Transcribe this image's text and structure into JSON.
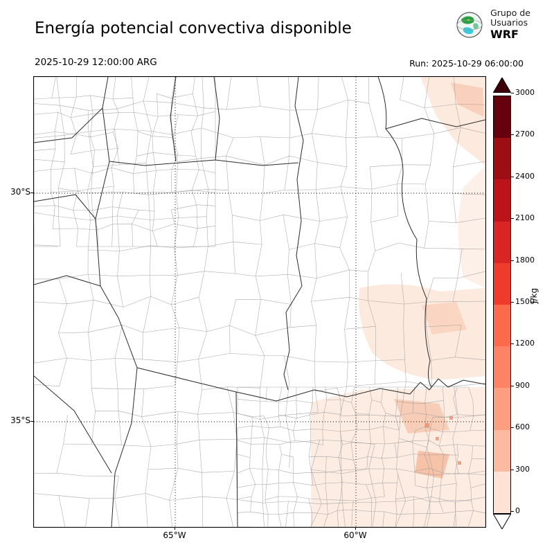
{
  "figure": {
    "title": "Energía potencial convectiva disponible",
    "valid_time": "2025-10-29 12:00:00 ARG",
    "run_label": "Run: 2025-10-29 06:00:00"
  },
  "logo": {
    "org_line1": "Grupo de",
    "org_line2": "Usuarios",
    "model": "WRF"
  },
  "map": {
    "lat_ticks": [
      "30°S",
      "35°S"
    ],
    "lon_ticks": [
      "65°W",
      "60°W"
    ],
    "shading_note": "light red fill ≈ 0–600 J/kg over NE corner, E edge and SE (Buenos Aires) sector; rest of domain ≈ 0"
  },
  "colorbar": {
    "unit": "J/kg",
    "tick_labels_top_to_bottom": [
      "3000",
      "2700",
      "2400",
      "2100",
      "1800",
      "1500",
      "1200",
      "900",
      "600",
      "300",
      "0"
    ],
    "segment_colors_top_to_bottom": [
      "#67000d",
      "#9c0e14",
      "#bc141a",
      "#d92523",
      "#ef3b2c",
      "#fb6a4a",
      "#fc8464",
      "#fc9e80",
      "#fcbba1",
      "#fee2d5"
    ],
    "over_color": "#3f000a",
    "under_color": "#ffffff"
  }
}
